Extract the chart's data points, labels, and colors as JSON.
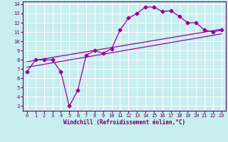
{
  "title": "",
  "xlabel": "Windchill (Refroidissement éolien,°C)",
  "bg_color": "#c8eef0",
  "line_color": "#990099",
  "xlim": [
    -0.5,
    23.5
  ],
  "ylim": [
    2.5,
    14.3
  ],
  "xticks": [
    0,
    1,
    2,
    3,
    4,
    5,
    6,
    7,
    8,
    9,
    10,
    11,
    12,
    13,
    14,
    15,
    16,
    17,
    18,
    19,
    20,
    21,
    22,
    23
  ],
  "yticks": [
    3,
    4,
    5,
    6,
    7,
    8,
    9,
    10,
    11,
    12,
    13,
    14
  ],
  "grid_color": "#ffffff",
  "jagged_x": [
    0,
    1,
    2,
    3,
    4,
    5,
    6,
    7,
    8,
    9,
    10,
    11,
    12,
    13,
    14,
    15,
    16,
    17,
    18,
    19,
    20,
    21,
    22,
    23
  ],
  "jagged_y": [
    6.7,
    8.0,
    8.0,
    8.0,
    6.7,
    3.0,
    4.7,
    8.5,
    9.0,
    8.7,
    9.2,
    11.2,
    12.5,
    13.0,
    13.7,
    13.7,
    13.2,
    13.3,
    12.7,
    12.0,
    12.0,
    11.2,
    11.0,
    11.2
  ],
  "line1_x": [
    0,
    23
  ],
  "line1_y": [
    7.2,
    10.8
  ],
  "line2_x": [
    0,
    23
  ],
  "line2_y": [
    7.8,
    11.3
  ],
  "marker": "D",
  "markersize": 2.5,
  "linewidth": 0.9,
  "tick_fontsize": 5.0,
  "xlabel_fontsize": 5.5,
  "tick_color": "#660066",
  "spine_color": "#660066"
}
